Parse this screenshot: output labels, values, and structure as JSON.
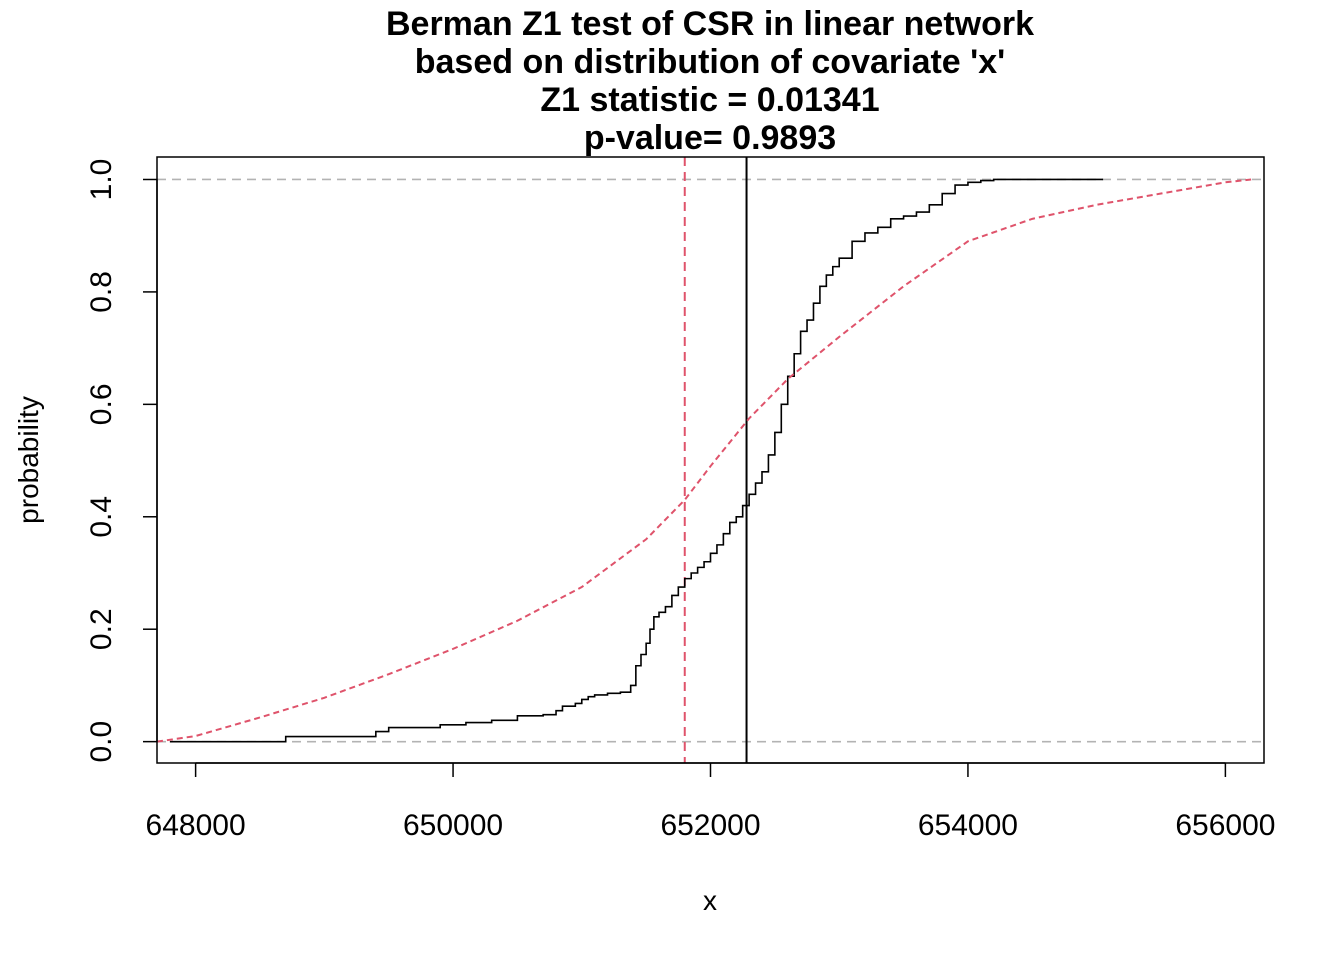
{
  "chart_data": {
    "type": "line",
    "title": "Berman Z1 test of CSR in linear network",
    "subtitle_lines": [
      "based on distribution of covariate 'x'",
      "Z1 statistic = 0.01341",
      "p-value= 0.9893"
    ],
    "xlabel": "x",
    "ylabel": "probability",
    "xlim": [
      647700,
      656300
    ],
    "ylim": [
      -0.038,
      1.04
    ],
    "x_ticks": [
      648000,
      650000,
      652000,
      654000,
      656000
    ],
    "x_tick_labels": [
      "648000",
      "650000",
      "652000",
      "654000",
      "656000"
    ],
    "y_ticks": [
      0.0,
      0.2,
      0.4,
      0.6,
      0.8,
      1.0
    ],
    "y_tick_labels": [
      "0.0",
      "0.2",
      "0.4",
      "0.6",
      "0.8",
      "1.0"
    ],
    "grid": false,
    "reference_hlines": {
      "values": [
        0,
        1
      ],
      "color": "#b3b3b3",
      "style": "dashed"
    },
    "series": [
      {
        "style": "step",
        "color": "#000000",
        "dash": "solid",
        "x": [
          647800,
          648000,
          648300,
          648600,
          648700,
          648900,
          649200,
          649400,
          649500,
          649700,
          649900,
          650100,
          650300,
          650500,
          650700,
          650800,
          650850,
          650950,
          651000,
          651050,
          651100,
          651200,
          651300,
          651380,
          651420,
          651460,
          651500,
          651530,
          651560,
          651600,
          651650,
          651700,
          651750,
          651800,
          651850,
          651900,
          651950,
          652000,
          652050,
          652100,
          652150,
          652200,
          652250,
          652300,
          652350,
          652400,
          652450,
          652500,
          652550,
          652600,
          652650,
          652700,
          652750,
          652800,
          652850,
          652900,
          652950,
          653000,
          653100,
          653200,
          653300,
          653400,
          653500,
          653600,
          653700,
          653800,
          653900,
          654000,
          654100,
          654200,
          654300,
          654500,
          654800,
          655050
        ],
        "y": [
          0.0,
          0.0,
          0.0,
          0.0,
          0.009,
          0.009,
          0.009,
          0.018,
          0.025,
          0.025,
          0.03,
          0.034,
          0.038,
          0.046,
          0.048,
          0.055,
          0.063,
          0.068,
          0.075,
          0.08,
          0.083,
          0.086,
          0.088,
          0.1,
          0.135,
          0.155,
          0.175,
          0.2,
          0.222,
          0.23,
          0.24,
          0.26,
          0.275,
          0.29,
          0.3,
          0.31,
          0.32,
          0.335,
          0.35,
          0.37,
          0.39,
          0.4,
          0.42,
          0.44,
          0.46,
          0.48,
          0.51,
          0.55,
          0.6,
          0.65,
          0.69,
          0.73,
          0.75,
          0.78,
          0.81,
          0.83,
          0.845,
          0.86,
          0.89,
          0.905,
          0.915,
          0.93,
          0.935,
          0.942,
          0.955,
          0.975,
          0.99,
          0.995,
          0.998,
          1.0,
          1.0,
          1.0,
          1.0,
          1.0
        ]
      },
      {
        "style": "line",
        "color": "#df536b",
        "dash": "dashed",
        "x": [
          647700,
          648000,
          648500,
          649000,
          649500,
          650000,
          650500,
          651000,
          651500,
          651800,
          652000,
          652300,
          652600,
          653000,
          653500,
          654000,
          654500,
          655000,
          655500,
          656000,
          656200
        ],
        "y": [
          0.0,
          0.01,
          0.043,
          0.078,
          0.12,
          0.165,
          0.215,
          0.275,
          0.36,
          0.43,
          0.49,
          0.575,
          0.645,
          0.72,
          0.81,
          0.89,
          0.93,
          0.955,
          0.975,
          0.995,
          1.0
        ]
      }
    ],
    "vlines": [
      {
        "x": 651800,
        "color": "#df536b",
        "dash": "dashed"
      },
      {
        "x": 652280,
        "color": "#000000",
        "dash": "solid"
      }
    ]
  }
}
